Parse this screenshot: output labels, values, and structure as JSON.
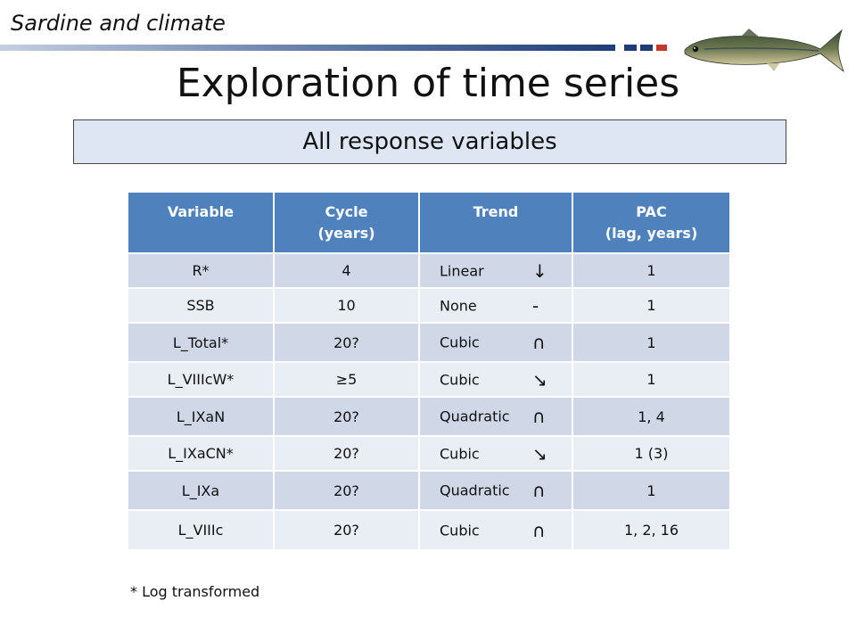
{
  "header": {
    "topic": "Sardine and climate",
    "title": "Exploration of time series",
    "subtitle": "All response variables"
  },
  "table": {
    "columns": [
      {
        "line1": "Variable",
        "line2": ""
      },
      {
        "line1": "Cycle",
        "line2": "(years)"
      },
      {
        "line1": "Trend",
        "line2": ""
      },
      {
        "line1": "PAC",
        "line2": "(lag, years)"
      }
    ],
    "rows": [
      {
        "variable": "R*",
        "cycle": "4",
        "trend": "Linear",
        "symbol": "↓",
        "pac": "1"
      },
      {
        "variable": "SSB",
        "cycle": "10",
        "trend": "None",
        "symbol": "-",
        "pac": "1"
      },
      {
        "variable": "L_Total*",
        "cycle": "20?",
        "trend": "Cubic",
        "symbol": "∩",
        "pac": "1"
      },
      {
        "variable": "L_VIIIcW*",
        "cycle": "≥5",
        "trend": "Cubic",
        "symbol": "↘",
        "pac": "1"
      },
      {
        "variable": "L_IXaN",
        "cycle": "20?",
        "trend": "Quadratic",
        "symbol": "∩",
        "pac": "1, 4"
      },
      {
        "variable": "L_IXaCN*",
        "cycle": "20?",
        "trend": "Cubic",
        "symbol": "↘",
        "pac": "1 (3)"
      },
      {
        "variable": "L_IXa",
        "cycle": "20?",
        "trend": "Quadratic",
        "symbol": "∩",
        "pac": "1"
      },
      {
        "variable": "L_VIIIc",
        "cycle": "20?",
        "trend": "Cubic",
        "symbol": "∩",
        "pac": "1, 2, 16"
      }
    ]
  },
  "footnote": "* Log transformed",
  "colors": {
    "header_blue": "#4f81bd",
    "row_dark": "#d0d8e8",
    "row_light": "#e9edf4",
    "subtitle_bg": "#dde6f2",
    "rule_navy": "#1e3d78",
    "rule_red": "#c0392b"
  },
  "icons": {
    "logo": "sardine-fish-image"
  }
}
